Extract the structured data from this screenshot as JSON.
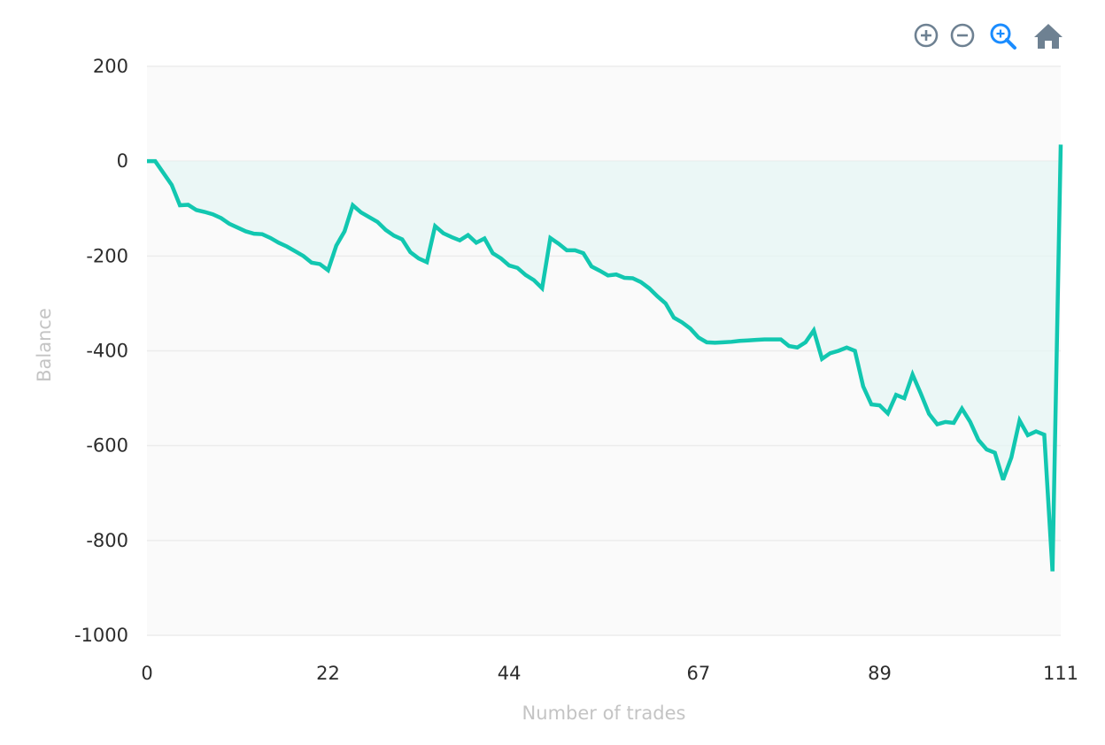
{
  "toolbar": {
    "icons": [
      "zoom-in-icon",
      "zoom-out-icon",
      "selection-zoom-icon",
      "reset-home-icon"
    ],
    "icon_color": "#6e8192",
    "active_icon_color": "#1a8cff"
  },
  "colors": {
    "line": "#12c7b0",
    "area_fill": "#e6f6f4",
    "plot_bg": "#fafafa",
    "grid": "#ececec"
  },
  "chart_data": {
    "type": "area",
    "title": "",
    "xlabel": "Number of trades",
    "ylabel": "Balance",
    "xlim": [
      0,
      111
    ],
    "ylim": [
      -1000,
      200
    ],
    "x_ticks": [
      0,
      22,
      44,
      67,
      89,
      111
    ],
    "y_ticks": [
      200,
      0,
      -200,
      -400,
      -600,
      -800,
      -1000
    ],
    "grid": true,
    "legend": "none",
    "baseline": 0,
    "series": [
      {
        "x": [
          0,
          1,
          2,
          3,
          4,
          5,
          6,
          7,
          8,
          9,
          10,
          11,
          12,
          13,
          14,
          15,
          16,
          17,
          18,
          19,
          20,
          21,
          22,
          23,
          24,
          25,
          26,
          27,
          28,
          29,
          30,
          31,
          32,
          33,
          34,
          35,
          36,
          37,
          38,
          39,
          40,
          41,
          42,
          43,
          44,
          45,
          46,
          47,
          48,
          49,
          50,
          51,
          52,
          53,
          54,
          55,
          56,
          57,
          58,
          59,
          60,
          61,
          62,
          63,
          64,
          65,
          66,
          67,
          68,
          69,
          70,
          71,
          72,
          73,
          74,
          75,
          76,
          77,
          78,
          79,
          80,
          81,
          82,
          83,
          84,
          85,
          86,
          87,
          88,
          89,
          90,
          91,
          92,
          93,
          94,
          95,
          96,
          97,
          98,
          99,
          100,
          101,
          102,
          103,
          104,
          105,
          106,
          107,
          108,
          109,
          110,
          111
        ],
        "values": [
          0,
          0,
          -25,
          -50,
          -93,
          -92,
          -103,
          -107,
          -112,
          -120,
          -132,
          -140,
          -148,
          -153,
          -154,
          -162,
          -172,
          -180,
          -190,
          -200,
          -214,
          -217,
          -230,
          -178,
          -148,
          -93,
          -108,
          -118,
          -128,
          -145,
          -157,
          -165,
          -192,
          -205,
          -213,
          -137,
          -152,
          -160,
          -167,
          -156,
          -172,
          -163,
          -194,
          -205,
          -220,
          -225,
          -240,
          -251,
          -268,
          -162,
          -174,
          -188,
          -188,
          -194,
          -222,
          -231,
          -241,
          -239,
          -246,
          -247,
          -255,
          -268,
          -285,
          -300,
          -330,
          -340,
          -353,
          -372,
          -382,
          -383,
          -382,
          -381,
          -379,
          -378,
          -377,
          -376,
          -376,
          -376,
          -390,
          -393,
          -382,
          -357,
          -417,
          -405,
          -400,
          -393,
          -400,
          -475,
          -513,
          -515,
          -532,
          -493,
          -500,
          -450,
          -490,
          -533,
          -555,
          -550,
          -552,
          -522,
          -550,
          -588,
          -608,
          -615,
          -672,
          -625,
          -547,
          -578,
          -570,
          -577,
          -865,
          35
        ]
      }
    ]
  }
}
